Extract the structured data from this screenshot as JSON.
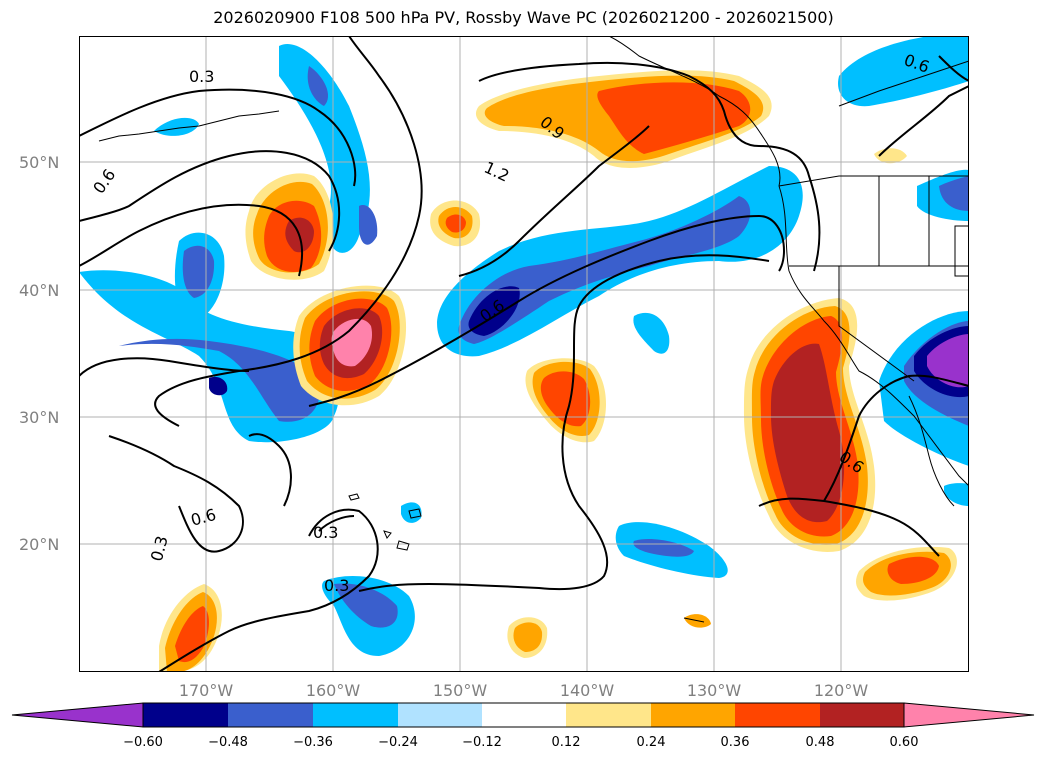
{
  "title": "2026020900 F108 500 hPa PV, Rossby Wave PC (2026021200 - 2026021500)",
  "lat_labels": [
    "50°N",
    "40°N",
    "30°N",
    "20°N"
  ],
  "lon_labels": [
    "170°W",
    "160°W",
    "150°W",
    "140°W",
    "130°W",
    "120°W"
  ],
  "contour_labels": [
    "0.3",
    "0.6",
    "0.9",
    "1.2",
    "0.6",
    "0.6",
    "0.6",
    "0.3",
    "0.3",
    "0.6",
    "0.3"
  ],
  "colorbar": {
    "ticks": [
      "−0.60",
      "−0.48",
      "−0.36",
      "−0.24",
      "−0.12",
      "0.12",
      "0.24",
      "0.36",
      "0.48",
      "0.60"
    ],
    "colors": [
      "#9932cc",
      "#00008b",
      "#3a5fcd",
      "#00bfff",
      "#b0e2ff",
      "#ffffff",
      "#ffe68a",
      "#ffa500",
      "#ff4500",
      "#b22222",
      "#ff82ab"
    ]
  }
}
